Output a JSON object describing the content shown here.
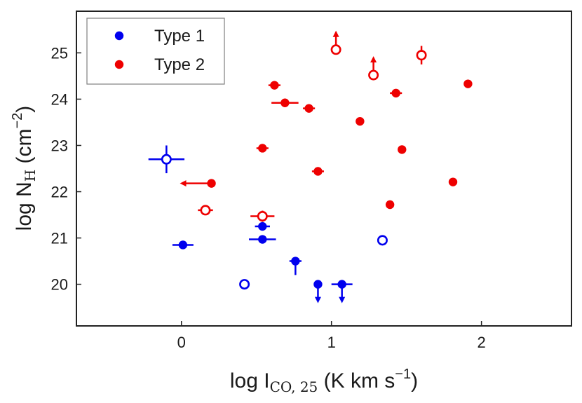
{
  "chart_data": {
    "type": "scatter",
    "title": "",
    "xlabel": {
      "main": "log I",
      "sub": "CO, 25",
      "units_pre": " (K km s",
      "units_sup": "−1",
      "units_post": ")"
    },
    "ylabel": {
      "main": "log N",
      "sub": "H",
      "units_pre": " (cm",
      "units_sup": "−2",
      "units_post": ")"
    },
    "xlim": [
      -0.7,
      2.6
    ],
    "ylim": [
      19.1,
      25.9
    ],
    "xticks": [
      0,
      1,
      2
    ],
    "xtick_labels": [
      "0",
      "1",
      "2"
    ],
    "yticks": [
      20,
      21,
      22,
      23,
      24,
      25
    ],
    "ytick_labels": [
      "20",
      "21",
      "22",
      "23",
      "24",
      "25"
    ],
    "grid": false,
    "legend": {
      "placement": "top-left",
      "entries": [
        "Type 1",
        "Type 2"
      ]
    },
    "colors": {
      "Type 1": "#0000ee",
      "Type 2": "#ee0000"
    },
    "series": [
      {
        "name": "Type 1",
        "color": "#0000ee",
        "points": [
          {
            "x": -0.1,
            "y": 22.7,
            "filled": false,
            "xerr": 0.12,
            "yerr": 0.3
          },
          {
            "x": 0.01,
            "y": 20.85,
            "filled": true,
            "xerr": 0.07
          },
          {
            "x": 0.42,
            "y": 20.0,
            "filled": false
          },
          {
            "x": 0.54,
            "y": 21.25,
            "filled": true,
            "xerr": 0.05
          },
          {
            "x": 0.54,
            "y": 20.97,
            "filled": true,
            "xerr": 0.09
          },
          {
            "x": 0.76,
            "y": 20.5,
            "filled": true,
            "xerr": 0.04,
            "yerr_low": 0.3
          },
          {
            "x": 0.91,
            "y": 20.0,
            "filled": true,
            "upper_limit_y": true
          },
          {
            "x": 1.07,
            "y": 20.0,
            "filled": true,
            "xerr": 0.07,
            "upper_limit_y": true
          },
          {
            "x": 1.34,
            "y": 20.95,
            "filled": false
          }
        ]
      },
      {
        "name": "Type 2",
        "color": "#ee0000",
        "points": [
          {
            "x": 0.2,
            "y": 22.18,
            "filled": true,
            "upper_limit_x": true
          },
          {
            "x": 0.16,
            "y": 21.6,
            "filled": false,
            "xerr": 0.05
          },
          {
            "x": 0.54,
            "y": 21.47,
            "filled": false,
            "xerr": 0.08,
            "yerr": 0.12
          },
          {
            "x": 0.54,
            "y": 22.94,
            "filled": true,
            "xerr": 0.04
          },
          {
            "x": 0.62,
            "y": 24.3,
            "filled": true,
            "xerr": 0.04
          },
          {
            "x": 0.69,
            "y": 23.92,
            "filled": true,
            "xerr": 0.09
          },
          {
            "x": 0.85,
            "y": 23.8,
            "filled": true,
            "xerr": 0.04
          },
          {
            "x": 0.91,
            "y": 22.44,
            "filled": true,
            "xerr": 0.04
          },
          {
            "x": 1.03,
            "y": 25.07,
            "filled": false,
            "lower_limit_y": true
          },
          {
            "x": 1.19,
            "y": 23.52,
            "filled": true
          },
          {
            "x": 1.28,
            "y": 24.52,
            "filled": false,
            "lower_limit_y": true
          },
          {
            "x": 1.39,
            "y": 21.72,
            "filled": true
          },
          {
            "x": 1.43,
            "y": 24.13,
            "filled": true,
            "xerr": 0.04
          },
          {
            "x": 1.47,
            "y": 22.91,
            "filled": true
          },
          {
            "x": 1.6,
            "y": 24.95,
            "filled": false,
            "yerr": 0.2
          },
          {
            "x": 1.81,
            "y": 22.21,
            "filled": true
          },
          {
            "x": 1.91,
            "y": 24.33,
            "filled": true
          }
        ]
      }
    ]
  }
}
